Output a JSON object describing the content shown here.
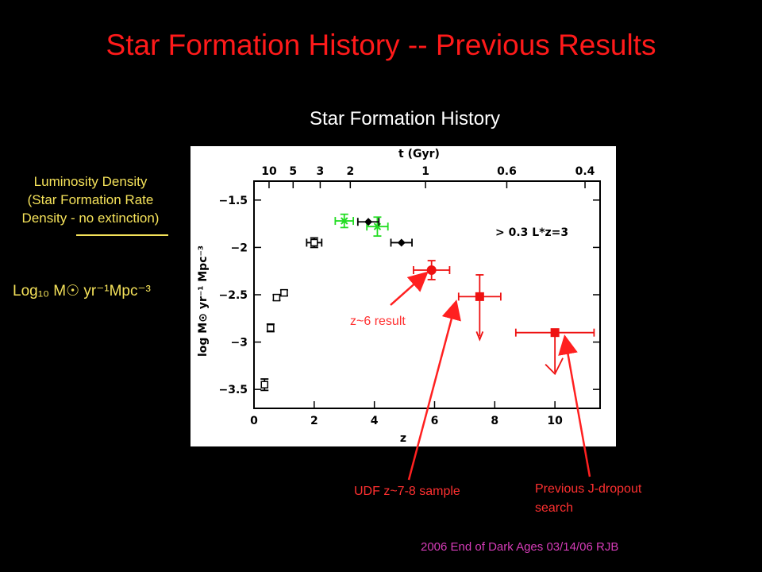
{
  "slide": {
    "title": "Star Formation History -- Previous Results",
    "chart_heading": "Star Formation History",
    "ylabel_line1": "Luminosity Density",
    "ylabel_line2": "(Star Formation Rate",
    "ylabel_line3": "Density - no extinction)",
    "ylabel_units": "Log₁₀ M☉ yr⁻¹Mpc⁻³",
    "annotation_z6": "z~6 result",
    "annotation_udf": "UDF z~7-8 sample",
    "annotation_prev_line1": "Previous J-dropout",
    "annotation_prev_line2": "search",
    "footer": "2006 End of Dark Ages 03/14/06 RJB"
  },
  "colors": {
    "title": "#ff1a1a",
    "annotation": "#ff3030",
    "ylabel": "#f5e25a",
    "footer": "#d63cb8",
    "green_points": "#22dd22",
    "red_points": "#ee1111"
  },
  "chart_data": {
    "type": "scatter",
    "xlabel": "z",
    "ylabel": "log M⊙ yr⁻¹ Mpc⁻³",
    "top_axis_label": "t (Gyr)",
    "xlim": [
      0,
      11.5
    ],
    "ylim": [
      -3.7,
      -1.3
    ],
    "x_ticks": [
      0,
      2,
      4,
      6,
      8,
      10
    ],
    "y_ticks": [
      -1.5,
      -2,
      -2.5,
      -3,
      -3.5
    ],
    "top_ticks": [
      {
        "label": "10",
        "z": 0.5
      },
      {
        "label": "5",
        "z": 1.3
      },
      {
        "label": "3",
        "z": 2.2
      },
      {
        "label": "2",
        "z": 3.2
      },
      {
        "label": "1",
        "z": 5.7
      },
      {
        "label": "0.6",
        "z": 8.4
      },
      {
        "label": "0.4",
        "z": 11.0
      }
    ],
    "legend_text": "> 0.3 L*z=3",
    "series": [
      {
        "marker": "open-square",
        "color": "#000000",
        "points": [
          {
            "x": 0.35,
            "y": -3.45,
            "yerr": 0.06
          },
          {
            "x": 0.55,
            "y": -2.85,
            "yerr": 0.04
          },
          {
            "x": 0.75,
            "y": -2.53,
            "yerr": 0.03
          },
          {
            "x": 1.0,
            "y": -2.48,
            "yerr": 0.03
          },
          {
            "x": 2.0,
            "y": -1.95,
            "xerr": 0.25,
            "yerr": 0.05
          }
        ]
      },
      {
        "marker": "x",
        "color": "#22dd22",
        "points": [
          {
            "x": 3.0,
            "y": -1.72,
            "xerr": 0.3,
            "yerr": 0.07
          },
          {
            "x": 4.1,
            "y": -1.78,
            "xerr": 0.35,
            "yerr": 0.1
          }
        ]
      },
      {
        "marker": "diamond",
        "color": "#000000",
        "points": [
          {
            "x": 3.8,
            "y": -1.73,
            "xerr": 0.35
          },
          {
            "x": 4.9,
            "y": -1.95,
            "xerr": 0.35
          }
        ]
      },
      {
        "marker": "circle",
        "color": "#ee1111",
        "points": [
          {
            "x": 5.9,
            "y": -2.24,
            "xerr": 0.6,
            "yerr": 0.1
          }
        ]
      },
      {
        "marker": "square",
        "color": "#ee1111",
        "points": [
          {
            "x": 7.5,
            "y": -2.52,
            "xerr": 0.7,
            "yerr_up": 0.23,
            "upper_limit": true
          }
        ]
      },
      {
        "marker": "square",
        "color": "#ee1111",
        "points": [
          {
            "x": 10.0,
            "y": -2.9,
            "xerr": 1.3,
            "upper_limit": true
          }
        ]
      }
    ]
  }
}
